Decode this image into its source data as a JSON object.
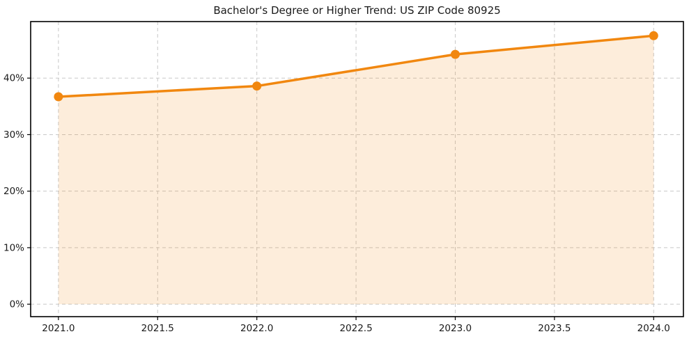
{
  "chart_data": {
    "type": "area",
    "title": "Bachelor's Degree or Higher Trend: US ZIP Code 80925",
    "x": [
      2021,
      2022,
      2023,
      2024
    ],
    "values": [
      36.7,
      38.6,
      44.2,
      47.5
    ],
    "xlabel": "",
    "ylabel": "",
    "xlim": [
      2020.86,
      2024.15
    ],
    "ylim": [
      -2.2,
      50.0
    ],
    "fill_baseline": 0,
    "grid": true,
    "legend": "none",
    "xticks": {
      "values": [
        2021.0,
        2021.5,
        2022.0,
        2022.5,
        2023.0,
        2023.5,
        2024.0
      ],
      "labels": [
        "2021.0",
        "2021.5",
        "2022.0",
        "2022.5",
        "2023.0",
        "2023.5",
        "2024.0"
      ]
    },
    "yticks": {
      "values": [
        0,
        10,
        20,
        30,
        40
      ],
      "labels": [
        "0%",
        "10%",
        "20%",
        "30%",
        "40%"
      ]
    },
    "colors": {
      "line": "#f1870f",
      "marker": "#f1870f",
      "fill": "rgba(241, 135, 15, 0.15)",
      "grid": "#c8c8c8",
      "frame": "#000000",
      "text": "#1a1a1a",
      "background": "#ffffff"
    }
  }
}
